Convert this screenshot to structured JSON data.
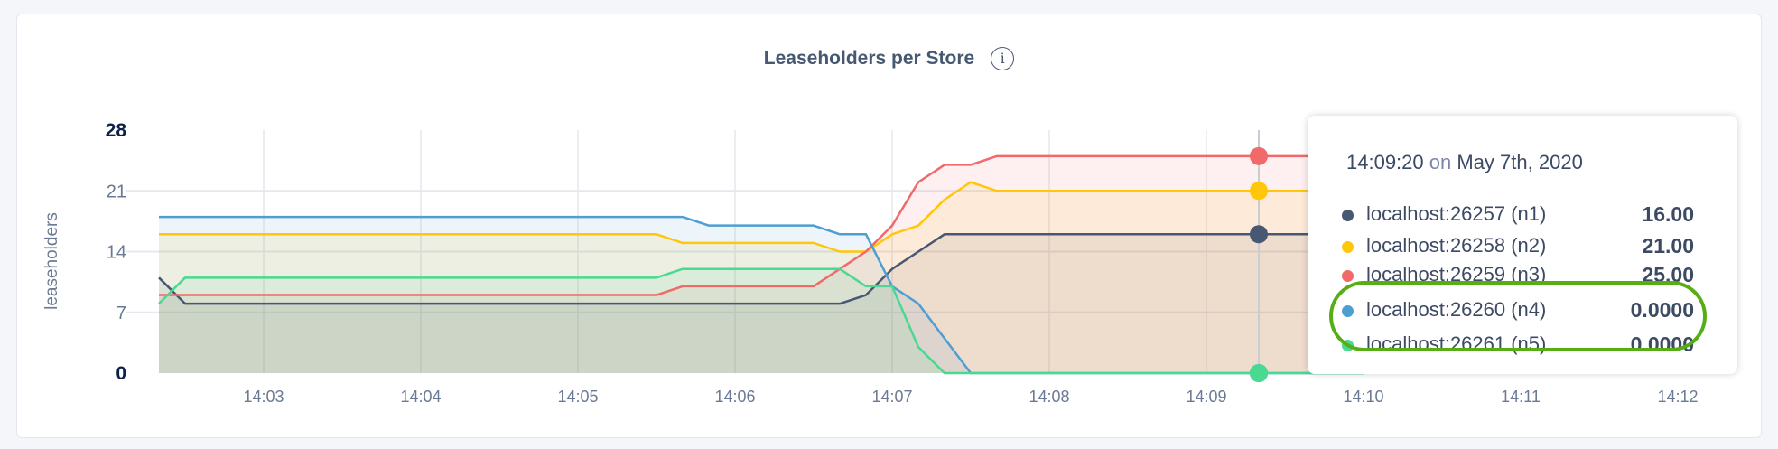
{
  "chart_data": {
    "type": "area",
    "title": "Leaseholders per Store",
    "ylabel": "leaseholders",
    "xlabel": "",
    "ylim": [
      0,
      28
    ],
    "yticks": [
      "0",
      "7",
      "14",
      "21",
      "28"
    ],
    "xticks": [
      "14:03",
      "14:04",
      "14:05",
      "14:06",
      "14:07",
      "14:08",
      "14:09",
      "14:10",
      "14:11",
      "14:12"
    ],
    "xlim": [
      "14:02:20",
      "14:12:20"
    ],
    "grid": true,
    "series": [
      {
        "name": "localhost:26257 (n1)",
        "color": "#475872",
        "points": [
          [
            "14:02:20",
            11
          ],
          [
            "14:02:30",
            8
          ],
          [
            "14:06:40",
            8
          ],
          [
            "14:06:50",
            9
          ],
          [
            "14:07:00",
            12
          ],
          [
            "14:07:10",
            14
          ],
          [
            "14:07:20",
            16
          ],
          [
            "14:10:00",
            16
          ]
        ]
      },
      {
        "name": "localhost:26258 (n2)",
        "color": "#ffc60a",
        "points": [
          [
            "14:02:20",
            16
          ],
          [
            "14:05:30",
            16
          ],
          [
            "14:05:40",
            15
          ],
          [
            "14:06:30",
            15
          ],
          [
            "14:06:40",
            14
          ],
          [
            "14:06:50",
            14
          ],
          [
            "14:07:00",
            16
          ],
          [
            "14:07:10",
            17
          ],
          [
            "14:07:20",
            20
          ],
          [
            "14:07:30",
            22
          ],
          [
            "14:07:40",
            21
          ],
          [
            "14:10:00",
            21
          ]
        ]
      },
      {
        "name": "localhost:26259 (n3)",
        "color": "#f16969",
        "points": [
          [
            "14:02:20",
            9
          ],
          [
            "14:05:30",
            9
          ],
          [
            "14:05:40",
            10
          ],
          [
            "14:06:30",
            10
          ],
          [
            "14:06:40",
            12
          ],
          [
            "14:06:50",
            14
          ],
          [
            "14:07:00",
            17
          ],
          [
            "14:07:10",
            22
          ],
          [
            "14:07:20",
            24
          ],
          [
            "14:07:30",
            24
          ],
          [
            "14:07:40",
            25
          ],
          [
            "14:10:00",
            25
          ]
        ]
      },
      {
        "name": "localhost:26260 (n4)",
        "color": "#4e9fd1",
        "points": [
          [
            "14:02:20",
            18
          ],
          [
            "14:05:40",
            18
          ],
          [
            "14:05:50",
            17
          ],
          [
            "14:06:30",
            17
          ],
          [
            "14:06:40",
            16
          ],
          [
            "14:06:50",
            16
          ],
          [
            "14:07:00",
            10
          ],
          [
            "14:07:10",
            8
          ],
          [
            "14:07:20",
            4
          ],
          [
            "14:07:30",
            0
          ],
          [
            "14:10:00",
            0
          ]
        ]
      },
      {
        "name": "localhost:26261 (n5)",
        "color": "#49d990",
        "points": [
          [
            "14:02:20",
            8
          ],
          [
            "14:02:30",
            11
          ],
          [
            "14:05:30",
            11
          ],
          [
            "14:05:40",
            12
          ],
          [
            "14:06:40",
            12
          ],
          [
            "14:06:50",
            10
          ],
          [
            "14:07:00",
            10
          ],
          [
            "14:07:10",
            3
          ],
          [
            "14:07:20",
            0
          ],
          [
            "14:10:00",
            0
          ]
        ]
      }
    ],
    "hover": {
      "time": "14:09:20"
    }
  },
  "tooltip": {
    "time": "14:09:20",
    "on": "on",
    "date": "May 7th, 2020",
    "rows": [
      {
        "label": "localhost:26257 (n1)",
        "value": "16.00",
        "color": "#475872"
      },
      {
        "label": "localhost:26258 (n2)",
        "value": "21.00",
        "color": "#ffc60a"
      },
      {
        "label": "localhost:26259 (n3)",
        "value": "25.00",
        "color": "#f16969"
      },
      {
        "label": "localhost:26260 (n4)",
        "value": "0.0000",
        "color": "#4e9fd1"
      },
      {
        "label": "localhost:26261 (n5)",
        "value": "0.0000",
        "color": "#49d990"
      }
    ],
    "highlight_color": "#56ad14"
  },
  "info_icon": "info-circle-icon",
  "info_glyph": "i"
}
